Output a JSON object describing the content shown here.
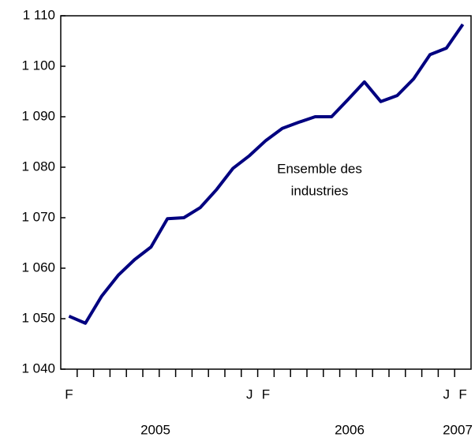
{
  "chart_data": {
    "type": "line",
    "categories": [
      "F",
      null,
      null,
      null,
      null,
      null,
      null,
      null,
      null,
      null,
      null,
      "J",
      "F",
      null,
      null,
      null,
      null,
      null,
      null,
      null,
      null,
      null,
      null,
      "J",
      "F"
    ],
    "years": [
      "2005",
      "2006",
      "2007"
    ],
    "annotation": [
      "Ensemble des",
      "industries"
    ],
    "series": [
      {
        "color": "#000080",
        "values": [
          1050.5,
          1049.1,
          1054.5,
          1058.6,
          1061.7,
          1064.2,
          1069.8,
          1070.0,
          1072.0,
          1075.6,
          1079.8,
          1082.3,
          1085.3,
          1087.7,
          1088.9,
          1090.0,
          1090.0,
          1093.4,
          1096.9,
          1093.0,
          1094.2,
          1097.5,
          1102.3,
          1103.6,
          1108.3
        ]
      }
    ],
    "ylim": [
      1040,
      1110
    ],
    "yticks": [
      {
        "value": 1040,
        "label": "1 040"
      },
      {
        "value": 1050,
        "label": "1 050"
      },
      {
        "value": 1060,
        "label": "1 060"
      },
      {
        "value": 1070,
        "label": "1 070"
      },
      {
        "value": 1080,
        "label": "1 080"
      },
      {
        "value": 1090,
        "label": "1 090"
      },
      {
        "value": 1100,
        "label": "1 100"
      },
      {
        "value": 1110,
        "label": "1 110"
      }
    ]
  }
}
